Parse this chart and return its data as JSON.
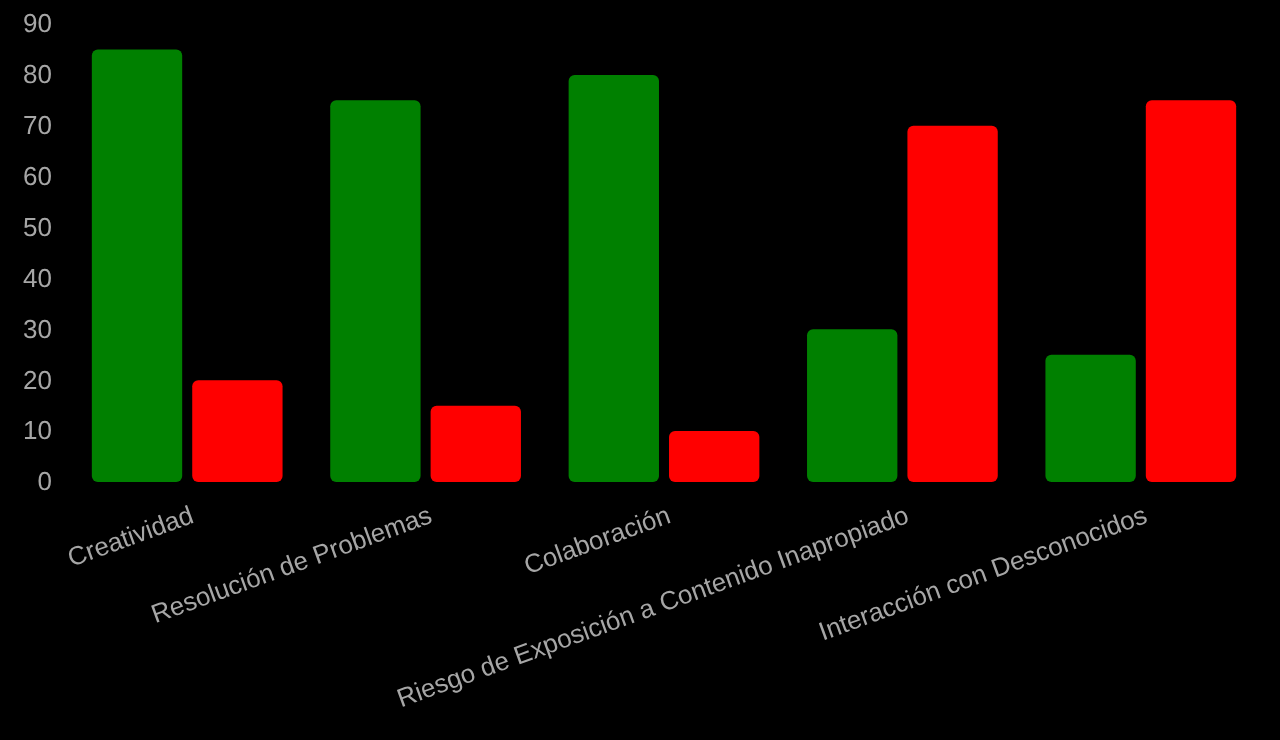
{
  "chart_data": {
    "type": "bar",
    "categories": [
      "Creatividad",
      "Resolución de Problemas",
      "Colaboración",
      "Riesgo de Exposición a Contenido Inapropiado",
      "Interacción con Desconocidos"
    ],
    "series": [
      {
        "color": "#008000",
        "values": [
          85,
          75,
          80,
          30,
          25
        ]
      },
      {
        "color": "#ff0000",
        "values": [
          20,
          15,
          10,
          70,
          75
        ]
      }
    ],
    "ylim": [
      0,
      90
    ],
    "yticks": [
      0,
      10,
      20,
      30,
      40,
      50,
      60,
      70,
      80,
      90
    ],
    "grid": false
  }
}
